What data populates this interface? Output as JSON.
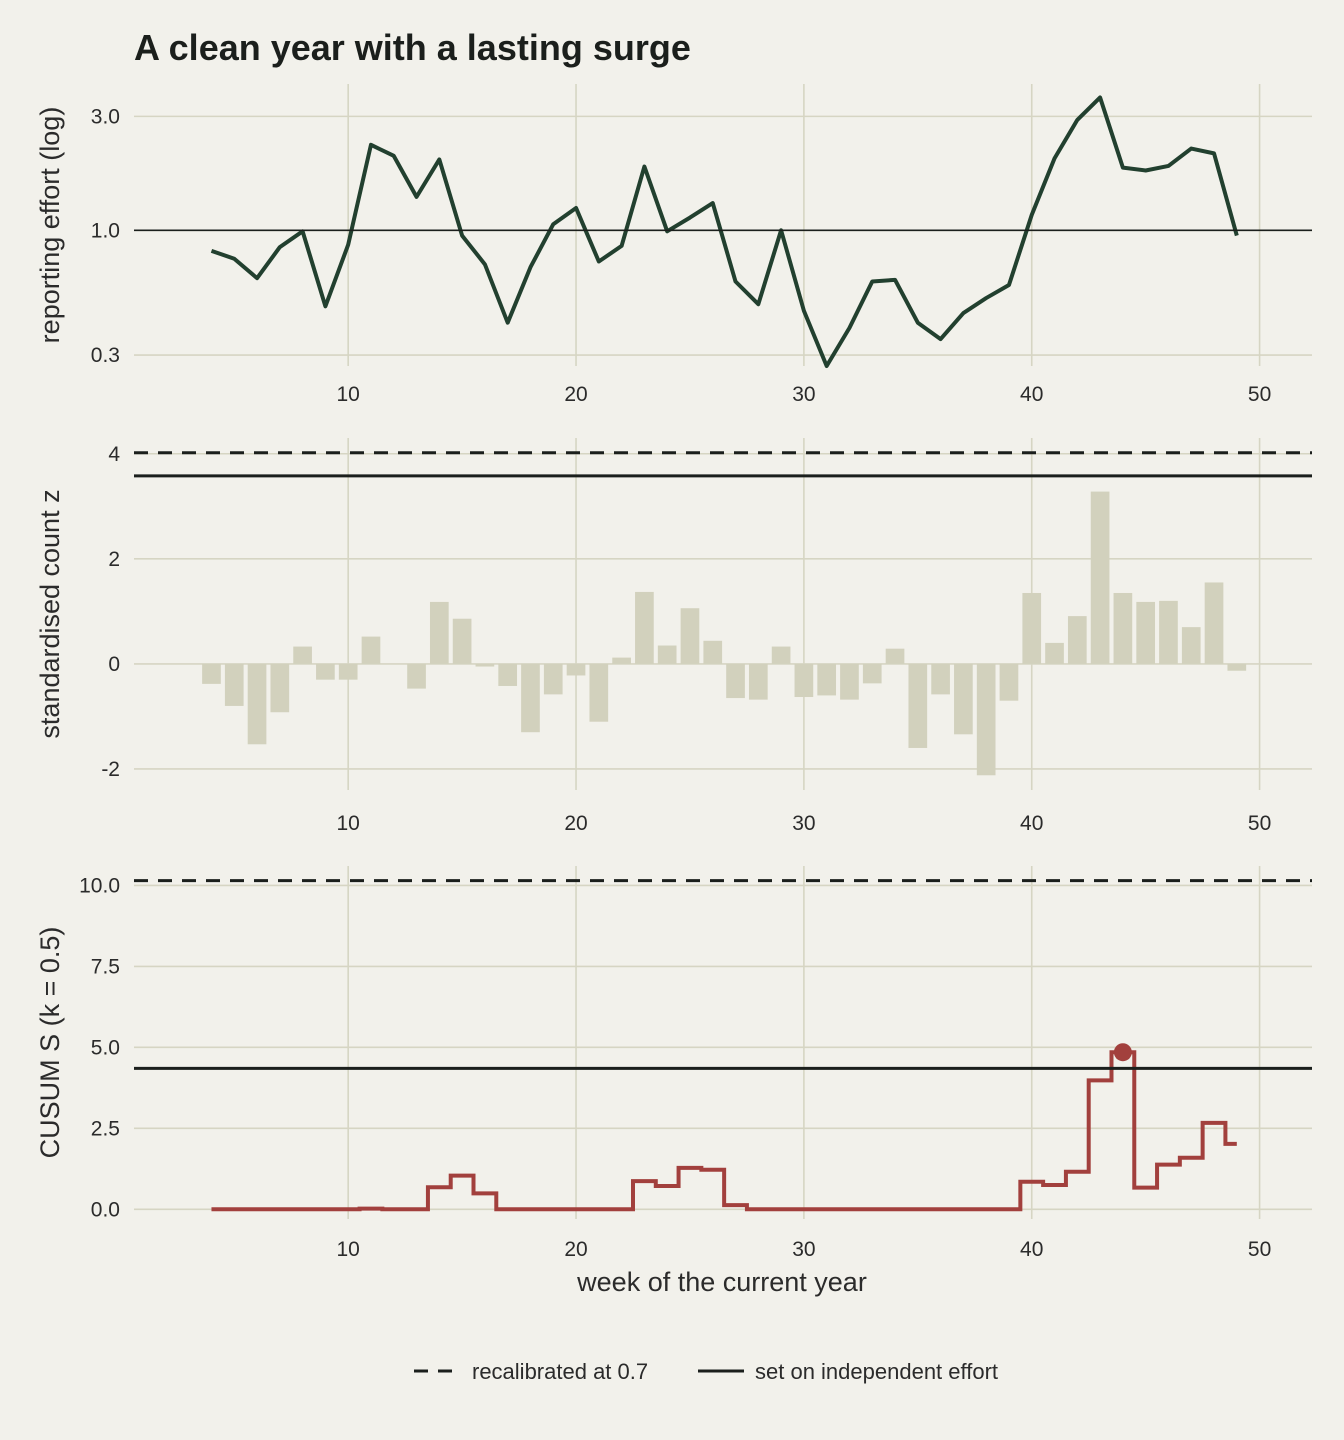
{
  "title": "A clean year with a lasting surge",
  "xlabel": "week of the current year",
  "colors": {
    "background": "#f2f1eb",
    "grid": "#d6d5c3",
    "effort_line": "#22402f",
    "bars": "#d2d1bd",
    "cusum": "#a2403d",
    "threshold": "#1b1f1c"
  },
  "legend": {
    "dashed_label": "recalibrated at 0.7",
    "solid_label": "set on independent effort"
  },
  "chart_data": [
    {
      "type": "line",
      "ylabel": "reporting effort (log)",
      "yscale": "log",
      "ylim": [
        0.27,
        4.1
      ],
      "xlim": [
        0.6,
        52.3
      ],
      "x_ticks": [
        "10",
        "20",
        "30",
        "40",
        "50"
      ],
      "y_ticks": [
        "0.3",
        "1.0",
        "3.0"
      ],
      "reference_line": 1.0,
      "x": [
        4,
        5,
        6,
        7,
        8,
        9,
        10,
        11,
        12,
        13,
        14,
        15,
        16,
        17,
        18,
        19,
        20,
        21,
        22,
        23,
        24,
        25,
        26,
        27,
        28,
        29,
        30,
        31,
        32,
        33,
        34,
        35,
        36,
        37,
        38,
        39,
        40,
        41,
        42,
        43,
        44,
        45,
        46,
        47,
        48,
        49
      ],
      "values": [
        0.82,
        0.76,
        0.63,
        0.85,
        0.99,
        0.48,
        0.87,
        2.28,
        2.05,
        1.38,
        1.98,
        0.95,
        0.72,
        0.41,
        0.7,
        1.06,
        1.24,
        0.74,
        0.86,
        1.85,
        0.99,
        1.13,
        1.3,
        0.61,
        0.49,
        1.0,
        0.46,
        0.27,
        0.39,
        0.61,
        0.62,
        0.41,
        0.35,
        0.45,
        0.52,
        0.59,
        1.16,
        2.0,
        2.9,
        3.6,
        1.83,
        1.78,
        1.86,
        2.2,
        2.1,
        0.95
      ]
    },
    {
      "type": "bar",
      "ylabel": "standardised count z",
      "ylim": [
        -2.4,
        4.3
      ],
      "xlim": [
        0.6,
        52.3
      ],
      "x_ticks": [
        "10",
        "20",
        "30",
        "40",
        "50"
      ],
      "y_ticks": [
        "-2",
        "0",
        "2",
        "4"
      ],
      "thresholds": {
        "dashed": 4.02,
        "solid": 3.58
      },
      "x": [
        4,
        5,
        6,
        7,
        8,
        9,
        10,
        11,
        12,
        13,
        14,
        15,
        16,
        17,
        18,
        19,
        20,
        21,
        22,
        23,
        24,
        25,
        26,
        27,
        28,
        29,
        30,
        31,
        32,
        33,
        34,
        35,
        36,
        37,
        38,
        39,
        40,
        41,
        42,
        43,
        44,
        45,
        46,
        47,
        48,
        49
      ],
      "values": [
        -0.38,
        -0.8,
        -1.53,
        -0.92,
        0.33,
        -0.3,
        -0.3,
        0.52,
        0.0,
        -0.47,
        1.18,
        0.86,
        -0.05,
        -0.42,
        -1.3,
        -0.58,
        -0.22,
        -1.1,
        0.12,
        1.37,
        0.35,
        1.06,
        0.44,
        -0.65,
        -0.68,
        0.33,
        -0.63,
        -0.6,
        -0.68,
        -0.37,
        0.29,
        -1.6,
        -0.58,
        -1.34,
        -2.12,
        -0.7,
        1.35,
        0.4,
        0.91,
        3.28,
        1.35,
        1.18,
        1.2,
        0.7,
        1.55,
        -0.13
      ]
    },
    {
      "type": "line",
      "step": true,
      "ylabel": "CUSUM S (k = 0.5)",
      "ylim": [
        -0.3,
        10.6
      ],
      "xlim": [
        0.6,
        52.3
      ],
      "x_ticks": [
        "10",
        "20",
        "30",
        "40",
        "50"
      ],
      "y_ticks": [
        "0.0",
        "2.5",
        "5.0",
        "7.5",
        "10.0"
      ],
      "thresholds": {
        "dashed": 10.15,
        "solid": 4.35
      },
      "alarm": {
        "x": 44,
        "y": 4.85
      },
      "x": [
        4,
        5,
        6,
        7,
        8,
        9,
        10,
        11,
        12,
        13,
        14,
        15,
        16,
        17,
        18,
        19,
        20,
        21,
        22,
        23,
        24,
        25,
        26,
        27,
        28,
        29,
        30,
        31,
        32,
        33,
        34,
        35,
        36,
        37,
        38,
        39,
        40,
        41,
        42,
        43,
        44,
        45,
        46,
        47,
        48,
        49
      ],
      "values": [
        0,
        0,
        0,
        0,
        0,
        0,
        0,
        0.02,
        0,
        0,
        0.68,
        1.04,
        0.49,
        0,
        0,
        0,
        0,
        0,
        0,
        0.87,
        0.72,
        1.28,
        1.22,
        0.13,
        0,
        0,
        0,
        0,
        0,
        0,
        0,
        0,
        0,
        0,
        0,
        0,
        0.85,
        0.75,
        1.16,
        3.98,
        4.85,
        0.67,
        1.38,
        1.59,
        2.67,
        2.02
      ]
    }
  ]
}
